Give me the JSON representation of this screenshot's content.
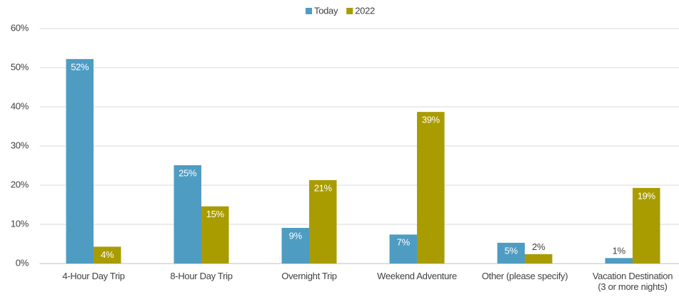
{
  "chart_data": {
    "type": "bar",
    "categories": [
      "4-Hour Day Trip",
      "8-Hour Day Trip",
      "Overnight Trip",
      "Weekend Adventure",
      "Other (please specify)",
      "Vacation Destination\n(3 or more nights)"
    ],
    "series": [
      {
        "name": "Today",
        "color": "#4f9cc3",
        "values": [
          52.2,
          25.1,
          9.1,
          7.4,
          5.3,
          1.4
        ],
        "value_labels": [
          "52%",
          "25%",
          "9%",
          "7%",
          "5%",
          "1%"
        ]
      },
      {
        "name": "2022",
        "color": "#a99c00",
        "values": [
          4.3,
          14.6,
          21.3,
          38.7,
          2.4,
          19.3
        ],
        "value_labels": [
          "4%",
          "15%",
          "21%",
          "39%",
          "2%",
          "19%"
        ]
      }
    ],
    "ylim": [
      0,
      60
    ],
    "yticks": [
      {
        "value": 0,
        "label": "0%"
      },
      {
        "value": 10,
        "label": "10%"
      },
      {
        "value": 20,
        "label": "20%"
      },
      {
        "value": 30,
        "label": "30%"
      },
      {
        "value": 40,
        "label": "40%"
      },
      {
        "value": 50,
        "label": "50%"
      },
      {
        "value": 60,
        "label": "60%"
      }
    ],
    "grid": true,
    "legend": "top"
  }
}
